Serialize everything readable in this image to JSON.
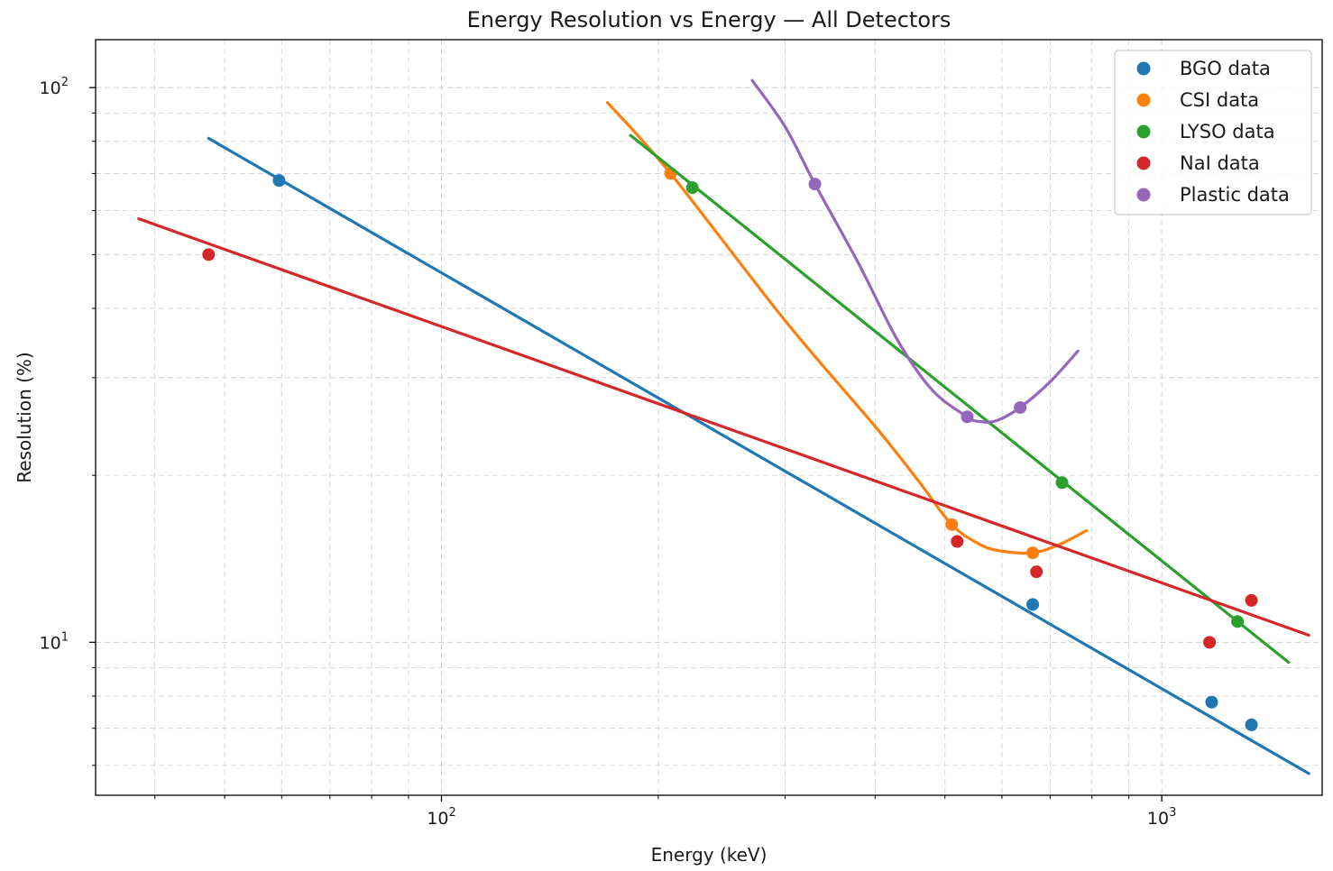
{
  "chart_data": {
    "type": "scatter",
    "title": "Energy Resolution vs Energy — All Detectors",
    "xlabel": "Energy (keV)",
    "ylabel": "Resolution (%)",
    "xscale": "log",
    "yscale": "log",
    "xlim": [
      33.1,
      1670
    ],
    "ylim": [
      5.3,
      122
    ],
    "x_ticks": [
      {
        "value": 100,
        "base": "10",
        "exp": "2"
      },
      {
        "value": 1000,
        "base": "10",
        "exp": "3"
      }
    ],
    "y_ticks": [
      {
        "value": 10,
        "base": "10",
        "exp": "1"
      },
      {
        "value": 100,
        "base": "10",
        "exp": "2"
      }
    ],
    "grid": true,
    "legend_position": "top-right",
    "series": [
      {
        "name": "BGO data",
        "color": "#1f77b4",
        "points": [
          [
            59.5,
            68
          ],
          [
            662,
            11.7
          ],
          [
            1173,
            7.8
          ],
          [
            1332,
            7.1
          ]
        ],
        "fit": [
          [
            47.5,
            81
          ],
          [
            1600,
            5.8
          ]
        ]
      },
      {
        "name": "CSI data",
        "color": "#ff7f0e",
        "points": [
          [
            208,
            70
          ],
          [
            511,
            16.3
          ],
          [
            662,
            14.5
          ]
        ],
        "fit": [
          [
            170,
            94
          ],
          [
            208,
            70
          ],
          [
            300,
            38
          ],
          [
            400,
            24.5
          ],
          [
            460,
            19.5
          ],
          [
            511,
            16.3
          ],
          [
            560,
            15.0
          ],
          [
            600,
            14.6
          ],
          [
            662,
            14.5
          ],
          [
            720,
            15.0
          ],
          [
            786,
            15.9
          ]
        ]
      },
      {
        "name": "LYSO data",
        "color": "#2ca02c",
        "points": [
          [
            223,
            66
          ],
          [
            727,
            19.4
          ],
          [
            1274,
            10.9
          ]
        ],
        "fit": [
          [
            183,
            82
          ],
          [
            1500,
            9.2
          ]
        ]
      },
      {
        "name": "NaI data",
        "color": "#d62728",
        "points": [
          [
            47.5,
            50
          ],
          [
            520,
            15.2
          ],
          [
            670,
            13.4
          ],
          [
            1165,
            10.0
          ],
          [
            1332,
            11.9
          ]
        ],
        "fit": [
          [
            38,
            58
          ],
          [
            1600,
            10.3
          ]
        ]
      },
      {
        "name": "Plastic data",
        "color": "#9467bd",
        "points": [
          [
            330,
            67
          ],
          [
            537,
            25.5
          ],
          [
            636,
            26.5
          ]
        ],
        "fit": [
          [
            270,
            103
          ],
          [
            300,
            85
          ],
          [
            330,
            67
          ],
          [
            380,
            48
          ],
          [
            430,
            35
          ],
          [
            480,
            28.5
          ],
          [
            537,
            25.5
          ],
          [
            560,
            25.0
          ],
          [
            590,
            25.1
          ],
          [
            636,
            26.5
          ],
          [
            700,
            29.5
          ],
          [
            765,
            33.5
          ]
        ]
      }
    ]
  }
}
